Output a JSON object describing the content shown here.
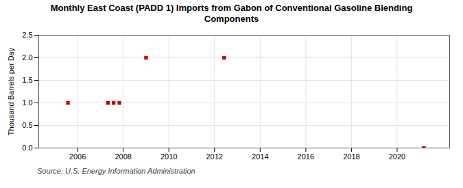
{
  "chart_data": {
    "type": "scatter",
    "title": "Monthly East Coast (PADD 1) Imports from Gabon of Conventional Gasoline Blending\nComponents",
    "ylabel": "Thousand Barrels per Day",
    "source": "Source: U.S. Energy Information Administration",
    "x": [
      2005.58,
      2007.33,
      2007.58,
      2007.83,
      2009.0,
      2012.42,
      2021.17
    ],
    "values": [
      1.0,
      1.0,
      1.0,
      1.0,
      2.0,
      2.0,
      0.0
    ],
    "color": "#cc0000",
    "marker": "square",
    "xlim": [
      2004.3,
      2022.3
    ],
    "ylim": [
      0.0,
      2.5
    ],
    "xticks": [
      2006,
      2008,
      2010,
      2012,
      2014,
      2016,
      2018,
      2020
    ],
    "yticks": [
      {
        "value": 0.0,
        "label": "0.0"
      },
      0.5,
      {
        "value": 1.0,
        "label": "1.0"
      },
      1.5,
      {
        "value": 2.0,
        "label": "2.0"
      },
      2.5
    ],
    "grid": true
  }
}
